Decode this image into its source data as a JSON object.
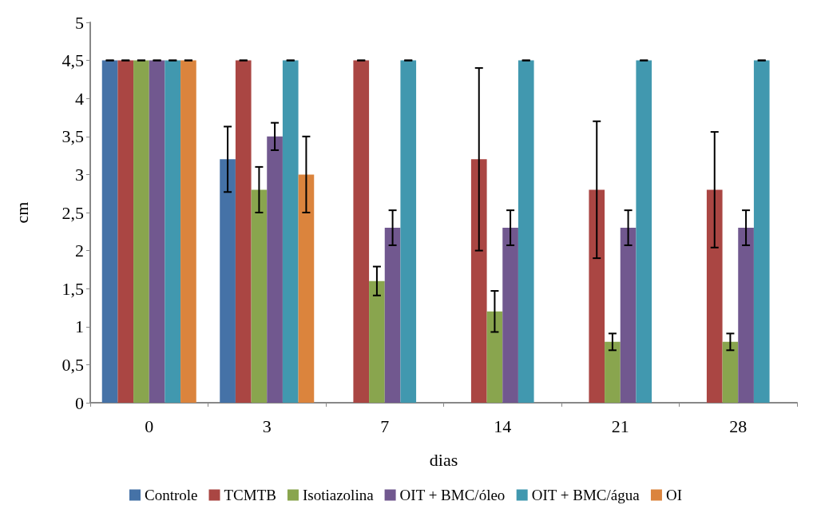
{
  "chart_data": {
    "type": "bar",
    "xlabel": "dias",
    "ylabel": "cm",
    "categories": [
      "0",
      "3",
      "7",
      "14",
      "21",
      "28"
    ],
    "series": [
      {
        "name": "Controle",
        "color": "#4572a7",
        "values": [
          4.5,
          3.2,
          0,
          0,
          0,
          0
        ],
        "errors": [
          0,
          0.43,
          null,
          null,
          null,
          null
        ]
      },
      {
        "name": "TCMTB",
        "color": "#aa4643",
        "values": [
          4.5,
          4.5,
          4.5,
          3.2,
          2.8,
          2.8
        ],
        "errors": [
          0,
          0,
          0,
          1.2,
          0.9,
          0.76
        ]
      },
      {
        "name": "Isotiazolina",
        "color": "#89a54e",
        "values": [
          4.5,
          2.8,
          1.6,
          1.2,
          0.8,
          0.8
        ],
        "errors": [
          0,
          0.3,
          0.19,
          0.27,
          0.11,
          0.11
        ]
      },
      {
        "name": "OIT + BMC/óleo",
        "color": "#71588f",
        "values": [
          4.5,
          3.5,
          2.3,
          2.3,
          2.3,
          2.3
        ],
        "errors": [
          0,
          0.18,
          0.23,
          0.23,
          0.23,
          0.23
        ]
      },
      {
        "name": "OIT + BMC/água",
        "color": "#4198af",
        "values": [
          4.5,
          4.5,
          4.5,
          4.5,
          4.5,
          4.5
        ],
        "errors": [
          0,
          0,
          0,
          0,
          0,
          0
        ]
      },
      {
        "name": "OI",
        "color": "#db843d",
        "values": [
          4.5,
          3.0,
          0,
          0,
          0,
          0
        ],
        "errors": [
          0,
          0.5,
          null,
          null,
          null,
          null
        ]
      }
    ],
    "ylim": [
      0,
      5
    ],
    "yticks": [
      0,
      {
        "value": 0.5,
        "label": "0,5"
      },
      1,
      {
        "value": 1.5,
        "label": "1,5"
      },
      2,
      {
        "value": 2.5,
        "label": "2,5"
      },
      3,
      {
        "value": 3.5,
        "label": "3,5"
      },
      4,
      {
        "value": 4.5,
        "label": "4,5"
      },
      5
    ],
    "grid": false,
    "legend": "bottom"
  }
}
